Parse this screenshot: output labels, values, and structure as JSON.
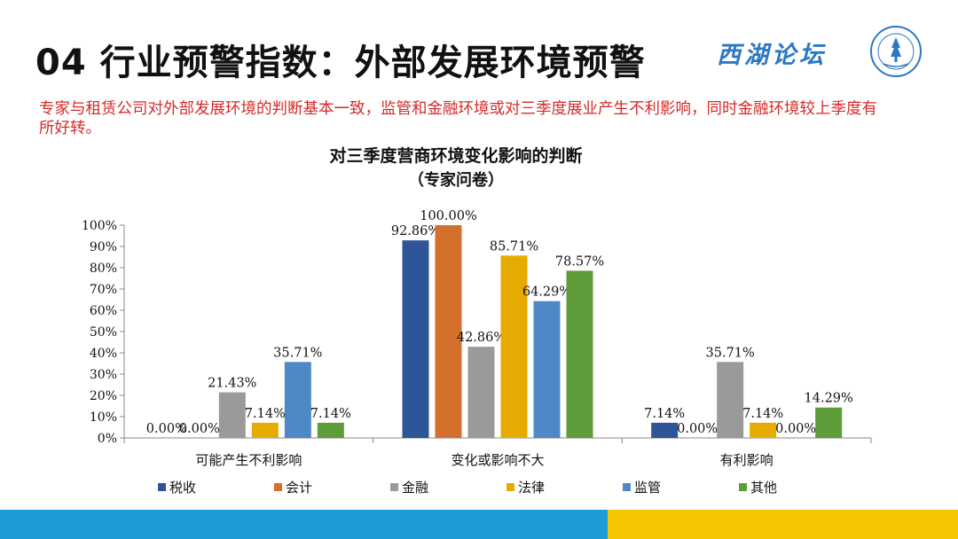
{
  "slide": {
    "title": "04 行业预警指数：外部发展环境预警",
    "brand": "西湖论坛",
    "subtitle": "专家与租赁公司对外部发展环境的判断基本一致，监管和金融环境或对三季度展业产生不利影响，同时金融环境较上季度有所好转。"
  },
  "chart_data": {
    "type": "bar",
    "title": "对三季度营商环境变化影响的判断",
    "subtitle": "（专家问卷）",
    "categories": [
      "可能产生不利影响",
      "变化或影响不大",
      "有利影响"
    ],
    "ylim": [
      0,
      100
    ],
    "yticks": [
      "0%",
      "10%",
      "20%",
      "30%",
      "40%",
      "50%",
      "60%",
      "70%",
      "80%",
      "90%",
      "100%"
    ],
    "legend_position": "bottom",
    "series": [
      {
        "name": "税收",
        "color": "#2e5597",
        "values": [
          0,
          92.86,
          7.14
        ],
        "labels": [
          "0.00%",
          "92.86%",
          "7.14%"
        ]
      },
      {
        "name": "会计",
        "color": "#d5702c",
        "values": [
          0,
          100,
          0
        ],
        "labels": [
          "0.00%",
          "100.00%",
          "0.00%"
        ]
      },
      {
        "name": "金融",
        "color": "#9a9a9a",
        "values": [
          21.43,
          42.86,
          35.71
        ],
        "labels": [
          "21.43%",
          "42.86%",
          "35.71%"
        ]
      },
      {
        "name": "法律",
        "color": "#e6ab00",
        "values": [
          7.14,
          85.71,
          7.14
        ],
        "labels": [
          "7.14%",
          "85.71%",
          "7.14%"
        ]
      },
      {
        "name": "监管",
        "color": "#4f88c6",
        "values": [
          35.71,
          64.29,
          0
        ],
        "labels": [
          "35.71%",
          "64.29%",
          "0.00%"
        ]
      },
      {
        "name": "其他",
        "color": "#5e9c3a",
        "values": [
          7.14,
          78.57,
          14.29
        ],
        "labels": [
          "7.14%",
          "78.57%",
          "14.29%"
        ]
      }
    ]
  }
}
